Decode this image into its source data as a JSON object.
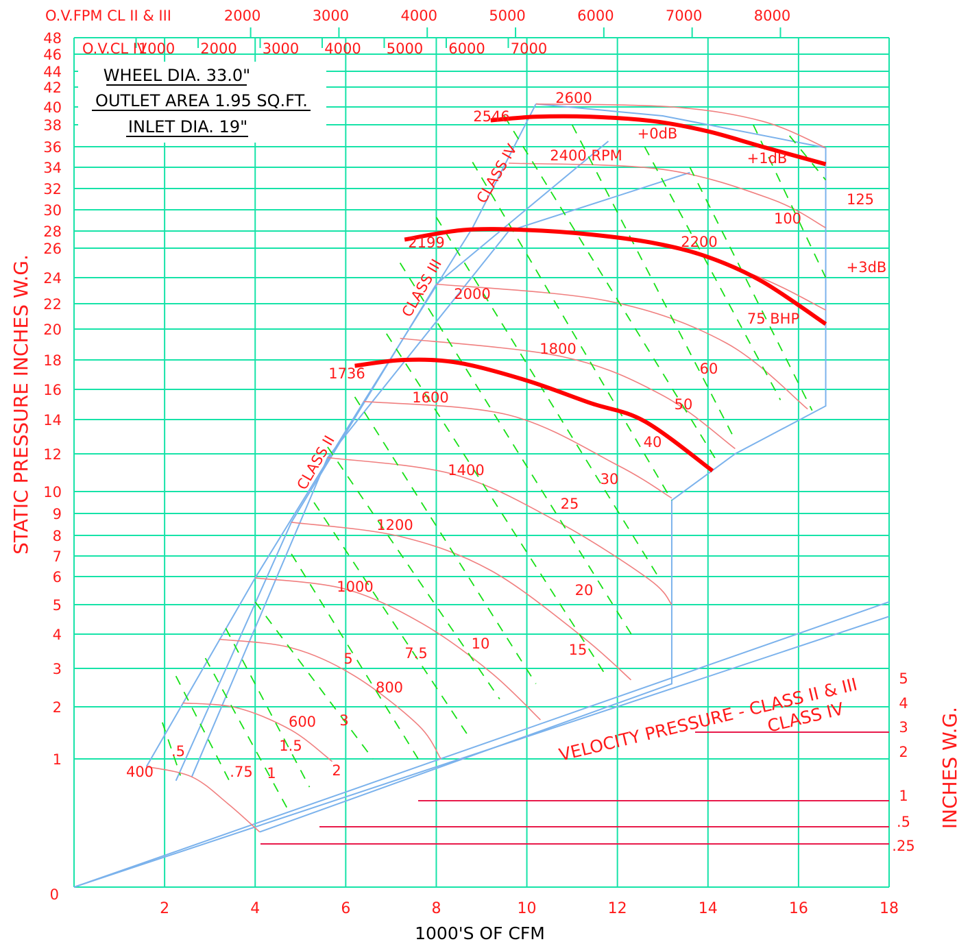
{
  "chart_data": {
    "type": "line",
    "title_lines": [
      "WHEEL DIA. 33.0\"",
      "OUTLET AREA 1.95 SQ.FT.",
      "INLET DIA. 19\""
    ],
    "xlabel": "1000'S OF CFM",
    "ylabel": "STATIC PRESSURE INCHES W.G.",
    "vp_axis_label": "INCHES W.G.",
    "xlim": [
      0,
      18
    ],
    "ylim": [
      0,
      48
    ],
    "x_ticks": [
      2,
      4,
      6,
      8,
      10,
      12,
      14,
      16,
      18
    ],
    "y_ticks": [
      1,
      2,
      3,
      4,
      5,
      6,
      7,
      8,
      9,
      10,
      12,
      14,
      16,
      18,
      20,
      22,
      24,
      26,
      28,
      30,
      32,
      34,
      36,
      38,
      40,
      42,
      44,
      46,
      48
    ],
    "y_zero_label": "0",
    "ovfpm_top": {
      "label": "O.V.FPM CL II & III",
      "values": [
        2000,
        3000,
        4000,
        5000,
        6000,
        7000,
        8000
      ]
    },
    "ovfpm_class4": {
      "label": "O.V.CL IV",
      "values": [
        1000,
        2000,
        3000,
        4000,
        5000,
        6000,
        7000
      ]
    },
    "class_labels": [
      "CLASS II",
      "CLASS III",
      "CLASS IV"
    ],
    "rpm_curves": [
      {
        "rpm": "400",
        "points": [
          [
            1.6,
            0.94
          ],
          [
            2.6,
            0.86
          ],
          [
            3.4,
            0.65
          ],
          [
            4.1,
            0.43
          ]
        ]
      },
      {
        "rpm": "600",
        "points": [
          [
            2.4,
            2.1
          ],
          [
            3.6,
            1.98
          ],
          [
            4.8,
            1.55
          ],
          [
            5.7,
            0.98
          ]
        ]
      },
      {
        "rpm": "800",
        "points": [
          [
            3.2,
            3.85
          ],
          [
            4.8,
            3.6
          ],
          [
            6.2,
            2.8
          ],
          [
            7.6,
            1.65
          ],
          [
            8.1,
            1.0
          ]
        ]
      },
      {
        "rpm": "1000",
        "points": [
          [
            4.0,
            5.95
          ],
          [
            6.0,
            5.55
          ],
          [
            7.7,
            4.35
          ],
          [
            9.2,
            2.9
          ],
          [
            10.3,
            1.75
          ]
        ]
      },
      {
        "rpm": "1200",
        "points": [
          [
            4.8,
            8.6
          ],
          [
            7.2,
            7.95
          ],
          [
            9.2,
            6.3
          ],
          [
            11.2,
            3.95
          ],
          [
            12.3,
            2.7
          ]
        ]
      },
      {
        "rpm": "1400",
        "points": [
          [
            5.6,
            11.8
          ],
          [
            8.4,
            10.9
          ],
          [
            10.7,
            8.6
          ],
          [
            12.7,
            5.9
          ],
          [
            13.2,
            5.0
          ]
        ]
      },
      {
        "rpm": "1600",
        "points": [
          [
            6.4,
            15.2
          ],
          [
            9.6,
            14.3
          ],
          [
            12.0,
            11.4
          ],
          [
            13.2,
            9.7
          ]
        ]
      },
      {
        "rpm": "1800",
        "points": [
          [
            7.2,
            19.4
          ],
          [
            10.8,
            18.2
          ],
          [
            13.0,
            15.6
          ],
          [
            14.6,
            12.3
          ]
        ]
      },
      {
        "rpm": "2000",
        "points": [
          [
            8.0,
            23.5
          ],
          [
            11.8,
            22.2
          ],
          [
            14.4,
            19.1
          ],
          [
            16.2,
            14.7
          ]
        ]
      },
      {
        "rpm": "2200",
        "points": [
          [
            8.8,
            28.3
          ],
          [
            12.5,
            27.0
          ],
          [
            15.0,
            24.2
          ],
          [
            16.6,
            21.5
          ]
        ]
      },
      {
        "rpm": "2400",
        "points": [
          [
            9.6,
            34.4
          ],
          [
            13.0,
            33.8
          ],
          [
            15.4,
            31.0
          ],
          [
            16.6,
            28.3
          ]
        ]
      },
      {
        "rpm": "2600",
        "points": [
          [
            10.2,
            40.3
          ],
          [
            13.2,
            40.0
          ],
          [
            15.2,
            38.4
          ],
          [
            16.6,
            35.9
          ]
        ]
      }
    ],
    "rpm_labels": [
      "400",
      "600",
      "800",
      "1000",
      "1200",
      "1400",
      "1600",
      "1800",
      "2000",
      "2200",
      "2400 RPM",
      "2600"
    ],
    "bhp_lines": [
      {
        "bhp": ".5",
        "from": [
          1.95,
          1.7
        ],
        "to": [
          2.35,
          0.87
        ]
      },
      {
        "bhp": ".75",
        "from": [
          2.25,
          2.8
        ],
        "to": [
          3.5,
          0.78
        ]
      },
      {
        "bhp": "1",
        "from": [
          2.9,
          3.3
        ],
        "to": [
          4.7,
          0.62
        ]
      },
      {
        "bhp": "1.5",
        "from": [
          3.35,
          4.2
        ],
        "to": [
          5.2,
          0.78
        ]
      },
      {
        "bhp": "2",
        "from": [
          4.0,
          5.1
        ],
        "to": [
          6.6,
          1.0
        ]
      },
      {
        "bhp": "3",
        "from": [
          4.8,
          7.1
        ],
        "to": [
          7.6,
          1.0
        ]
      },
      {
        "bhp": "5",
        "from": [
          5.3,
          9.5
        ],
        "to": [
          8.7,
          1.45
        ]
      },
      {
        "bhp": "7.5",
        "from": [
          5.6,
          12.4
        ],
        "to": [
          9.4,
          2.2
        ]
      },
      {
        "bhp": "10",
        "from": [
          6.2,
          15.5
        ],
        "to": [
          10.2,
          2.6
        ]
      },
      {
        "bhp": "15",
        "from": [
          6.9,
          19.7
        ],
        "to": [
          11.7,
          2.9
        ]
      },
      {
        "bhp": "20",
        "from": [
          7.2,
          25.0
        ],
        "to": [
          12.4,
          3.8
        ]
      },
      {
        "bhp": "25",
        "from": [
          8.0,
          29.3
        ],
        "to": [
          12.9,
          6.0
        ]
      },
      {
        "bhp": "30",
        "from": [
          8.8,
          34.5
        ],
        "to": [
          13.2,
          9.6
        ]
      },
      {
        "bhp": "40",
        "from": [
          9.5,
          39.0
        ],
        "to": [
          14.2,
          11.6
        ]
      },
      {
        "bhp": "50",
        "from": [
          11.0,
          38.0
        ],
        "to": [
          14.6,
          12.8
        ]
      },
      {
        "bhp": "60",
        "from": [
          12.6,
          36.0
        ],
        "to": [
          15.6,
          15.3
        ]
      },
      {
        "bhp": "75 BHP",
        "from": [
          13.6,
          34.0
        ],
        "to": [
          16.3,
          14.6
        ]
      },
      {
        "bhp": "100",
        "from": [
          15.0,
          38.0
        ],
        "to": [
          16.6,
          24.0
        ]
      },
      {
        "bhp": "125",
        "from": [
          15.8,
          37.0
        ],
        "to": [
          16.6,
          32.8
        ]
      }
    ],
    "sound_labels": [
      "+0dB",
      "+1dB",
      "+3dB"
    ],
    "thick_curves": [
      {
        "rpm": "2546",
        "points": [
          [
            9.2,
            38.5
          ],
          [
            10.2,
            38.9
          ],
          [
            11.4,
            38.9
          ],
          [
            12.8,
            38.4
          ],
          [
            14.0,
            37.4
          ],
          [
            15.2,
            36.0
          ],
          [
            16.6,
            34.3
          ]
        ]
      },
      {
        "rpm": "2199",
        "points": [
          [
            7.3,
            27.0
          ],
          [
            8.6,
            28.1
          ],
          [
            10.0,
            28.1
          ],
          [
            11.4,
            27.6
          ],
          [
            12.8,
            26.6
          ],
          [
            14.0,
            25.4
          ],
          [
            15.2,
            23.7
          ],
          [
            16.6,
            20.4
          ]
        ]
      },
      {
        "rpm": "1736",
        "points": [
          [
            6.2,
            17.6
          ],
          [
            7.3,
            18.0
          ],
          [
            8.5,
            17.8
          ],
          [
            10.0,
            16.6
          ],
          [
            11.4,
            15.1
          ],
          [
            12.6,
            13.9
          ],
          [
            14.1,
            11.1
          ]
        ]
      }
    ],
    "class_boundaries": [
      {
        "name": "CLASS II",
        "points": [
          [
            1.6,
            0.94
          ],
          [
            4.0,
            5.95
          ],
          [
            6.4,
            15.2
          ],
          [
            8.8,
            28.3
          ],
          [
            10.2,
            40.3
          ]
        ]
      },
      {
        "name": "CLASS III",
        "points": [
          [
            2.25,
            0.83
          ],
          [
            4.8,
            8.6
          ],
          [
            8.0,
            23.5
          ],
          [
            11.8,
            36.5
          ]
        ]
      },
      {
        "name": "CLASS IV",
        "points": [
          [
            2.6,
            0.86
          ],
          [
            5.6,
            11.8
          ],
          [
            9.6,
            28.0
          ],
          [
            13.6,
            33.5
          ]
        ]
      },
      {
        "name": "outer",
        "points": [
          [
            10.2,
            40.3
          ],
          [
            13.0,
            39.0
          ],
          [
            16.6,
            35.9
          ],
          [
            16.6,
            14.9
          ],
          [
            14.6,
            12.0
          ],
          [
            13.2,
            9.6
          ],
          [
            13.2,
            2.6
          ],
          [
            4.1,
            0.43
          ]
        ]
      }
    ],
    "velocity_pressure": {
      "label_main": "VELOCITY PRESSURE - CLASS II & III",
      "label_class4": "CLASS IV",
      "right_ticks": [
        "5",
        "4",
        "3",
        "2",
        "1",
        ".5",
        ".25"
      ]
    }
  }
}
